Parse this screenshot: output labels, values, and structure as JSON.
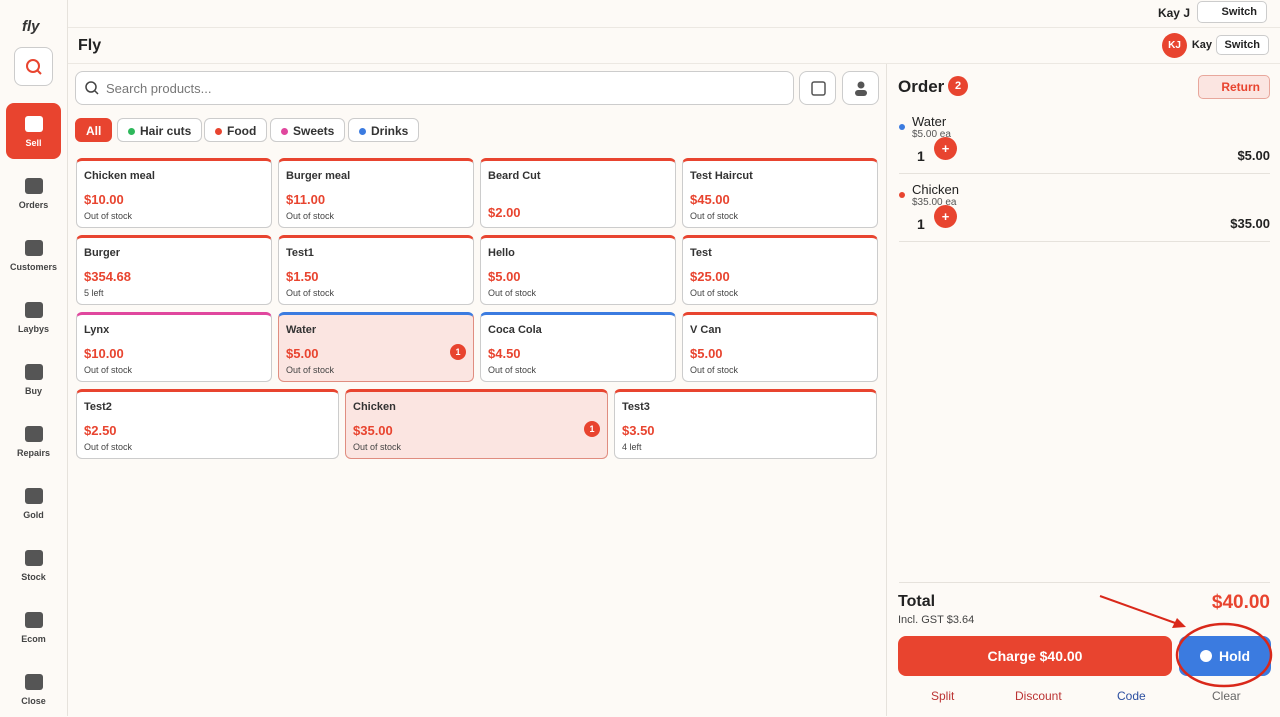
{
  "logo": "fly",
  "nav": [
    "Sell",
    "Orders",
    "Customers",
    "Laybys",
    "Buy",
    "Repairs",
    "Gold",
    "Stock",
    "Ecom",
    "Close"
  ],
  "topbar": {
    "user": "Kay J",
    "switch": "Switch"
  },
  "header": {
    "title": "Fly",
    "initials": "KJ",
    "user": "Kay",
    "switch": "Switch"
  },
  "search": {
    "placeholder": "Search products..."
  },
  "filters": [
    {
      "label": "All"
    },
    {
      "label": "Hair cuts",
      "color": "#2eb85c"
    },
    {
      "label": "Food",
      "color": "#e8442f"
    },
    {
      "label": "Sweets",
      "color": "#e0479e"
    },
    {
      "label": "Drinks",
      "color": "#3b7be0"
    }
  ],
  "products": [
    {
      "name": "Chicken meal",
      "price": "$10.00",
      "stock": "Out of stock",
      "color": "#e8442f"
    },
    {
      "name": "Burger meal",
      "price": "$11.00",
      "stock": "Out of stock",
      "color": "#e8442f"
    },
    {
      "name": "Beard Cut",
      "price": "$2.00",
      "color": "#e8442f"
    },
    {
      "name": "Test Haircut",
      "price": "$45.00",
      "stock": "Out of stock",
      "color": "#e8442f"
    },
    {
      "name": "Burger",
      "price": "$354.68",
      "stock": "5 left",
      "color": "#e8442f"
    },
    {
      "name": "Test1",
      "price": "$1.50",
      "stock": "Out of stock",
      "color": "#e8442f"
    },
    {
      "name": "Hello",
      "price": "$5.00",
      "stock": "Out of stock",
      "color": "#e8442f"
    },
    {
      "name": "Test",
      "price": "$25.00",
      "stock": "Out of stock",
      "color": "#e8442f"
    },
    {
      "name": "Lynx",
      "price": "$10.00",
      "stock": "Out of stock",
      "color": "#e0479e"
    },
    {
      "name": "Water",
      "price": "$5.00",
      "stock": "Out of stock",
      "color": "#3b7be0",
      "qty": 1
    },
    {
      "name": "Coca Cola",
      "price": "$4.50",
      "stock": "Out of stock",
      "color": "#3b7be0"
    },
    {
      "name": "V Can",
      "price": "$5.00",
      "stock": "Out of stock",
      "color": "#e8442f"
    },
    {
      "name": "Test2",
      "price": "$2.50",
      "stock": "Out of stock",
      "color": "#e8442f"
    },
    {
      "name": "Chicken",
      "price": "$35.00",
      "stock": "Out of stock",
      "color": "#e8442f",
      "qty": 1
    },
    {
      "name": "Test3",
      "price": "$3.50",
      "stock": "4 left",
      "color": "#e8442f"
    }
  ],
  "order": {
    "title": "Order",
    "count": 2,
    "return": "Return",
    "items": [
      {
        "name": "Water",
        "unit": "$5.00 ea",
        "qty": 1,
        "plus": "+",
        "total": "$5.00",
        "color": "#3b7be0"
      },
      {
        "name": "Chicken",
        "unit": "$35.00 ea",
        "qty": 1,
        "plus": "+",
        "total": "$35.00",
        "color": "#e8442f"
      }
    ],
    "total_label": "Total",
    "gst": "Incl. GST $3.64",
    "total": "$40.00",
    "charge": "Charge $40.00",
    "hold": "Hold",
    "links": [
      "Split",
      "Discount",
      "Code",
      "Clear"
    ]
  }
}
